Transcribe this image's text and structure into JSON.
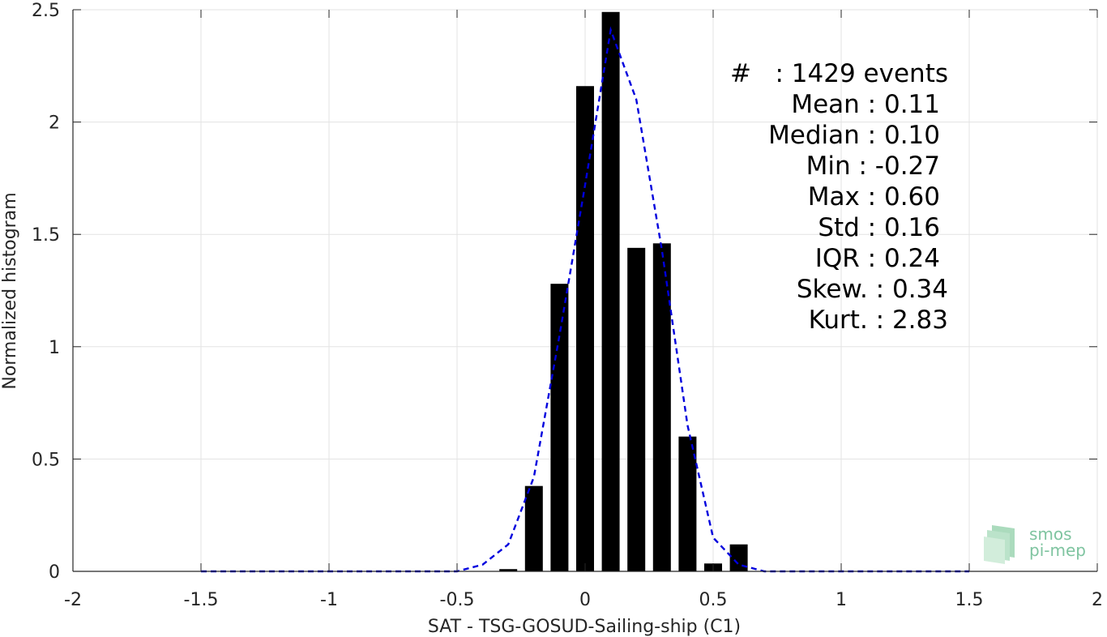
{
  "chart_data": {
    "type": "bar",
    "xlabel": "SAT - TSG-GOSUD-Sailing-ship (C1)",
    "ylabel": "Normalized histogram",
    "xlim": [
      -2,
      2
    ],
    "ylim": [
      0,
      2.5
    ],
    "xticks": [
      "-2",
      "-1.5",
      "-1",
      "-0.5",
      "0",
      "0.5",
      "1",
      "1.5",
      "2"
    ],
    "yticks": [
      "0",
      "0.5",
      "1",
      "1.5",
      "2",
      "2.5"
    ],
    "grid": true,
    "bars": {
      "x": [
        -0.3,
        -0.2,
        -0.1,
        0.0,
        0.1,
        0.2,
        0.3,
        0.4,
        0.5,
        0.6
      ],
      "values": [
        0.01,
        0.38,
        1.28,
        2.16,
        2.49,
        1.44,
        1.46,
        0.6,
        0.035,
        0.12
      ],
      "color": "#000000"
    },
    "fit_curve": {
      "style": "dashed",
      "color": "#0000dd",
      "x": [
        -1.5,
        -0.5,
        -0.4,
        -0.3,
        -0.2,
        -0.1,
        0.0,
        0.1,
        0.2,
        0.3,
        0.4,
        0.5,
        0.6,
        0.7,
        1.5
      ],
      "y": [
        0.0,
        0.0,
        0.03,
        0.12,
        0.42,
        1.05,
        1.72,
        2.41,
        2.1,
        1.43,
        0.65,
        0.15,
        0.03,
        0.0,
        0.0
      ]
    },
    "stats": [
      {
        "label": "#  ",
        "value": "1429 events"
      },
      {
        "label": "Mean",
        "value": "0.11"
      },
      {
        "label": "Median",
        "value": "0.10"
      },
      {
        "label": "Min",
        "value": "-0.27"
      },
      {
        "label": "Max",
        "value": "0.60"
      },
      {
        "label": "Std",
        "value": "0.16"
      },
      {
        "label": "IQR",
        "value": "0.24"
      },
      {
        "label": "Skew.",
        "value": "0.34"
      },
      {
        "label": "Kurt.",
        "value": "2.83"
      }
    ]
  },
  "logo": {
    "line1": "smos",
    "line2": "pi-mep"
  }
}
